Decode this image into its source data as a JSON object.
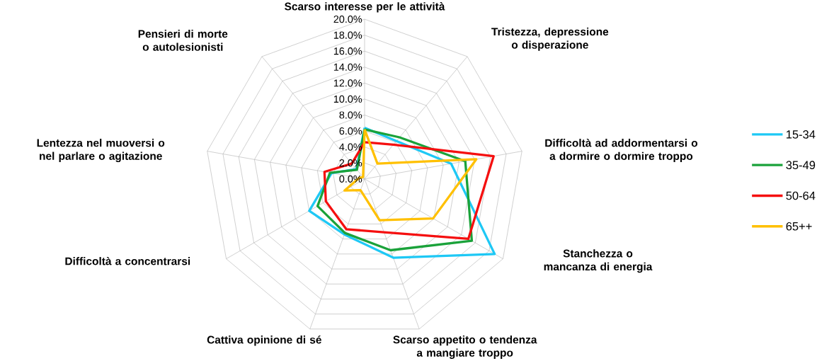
{
  "chart_data": {
    "type": "radar",
    "categories": [
      "Scarso interesse per le attività",
      "Tristezza, depressione o disperazione",
      "Difficoltà ad addormentarsi o a dormire o dormire troppo",
      "Stanchezza o mancanza di energia",
      "Scarso appetito o tendenza a mangiare troppo",
      "Cattiva opinione di sé",
      "Difficoltà a concentrarsi",
      "Lentezza nel muoversi o nel parlare o agitazione",
      "Pensieri di morte o autolesionisti"
    ],
    "series": [
      {
        "name": "15-34",
        "color": "#1ec8f5",
        "values": [
          6.4,
          6.2,
          11.0,
          18.8,
          10.5,
          7.4,
          8.0,
          4.2,
          1.6
        ]
      },
      {
        "name": "35-49",
        "color": "#1aa23a",
        "values": [
          6.2,
          6.8,
          12.8,
          15.5,
          9.5,
          7.2,
          6.8,
          4.4,
          1.5
        ]
      },
      {
        "name": "50-64",
        "color": "#f50f0f",
        "values": [
          4.6,
          5.6,
          16.4,
          15.0,
          7.1,
          6.7,
          5.6,
          5.1,
          2.5
        ]
      },
      {
        "name": "65++",
        "color": "#ffc000",
        "values": [
          6.2,
          2.5,
          14.2,
          9.9,
          5.5,
          1.5,
          2.9,
          0.7,
          0.3
        ]
      }
    ],
    "ylim": [
      0,
      20
    ],
    "yticks": [
      {
        "value": 0,
        "label": "0.0%"
      },
      {
        "value": 2,
        "label": "2.0%"
      },
      {
        "value": 4,
        "label": "4.0%"
      },
      {
        "value": 6,
        "label": "6.0%"
      },
      {
        "value": 8,
        "label": "8.0%"
      },
      {
        "value": 10,
        "label": "10.0%"
      },
      {
        "value": 12,
        "label": "12.0%"
      },
      {
        "value": 14,
        "label": "14.0%"
      },
      {
        "value": 16,
        "label": "16.0%"
      },
      {
        "value": 18,
        "label": "18.0%"
      },
      {
        "value": 20,
        "label": "20.0%"
      }
    ],
    "grid": true,
    "legend": "right",
    "marker": "none"
  }
}
